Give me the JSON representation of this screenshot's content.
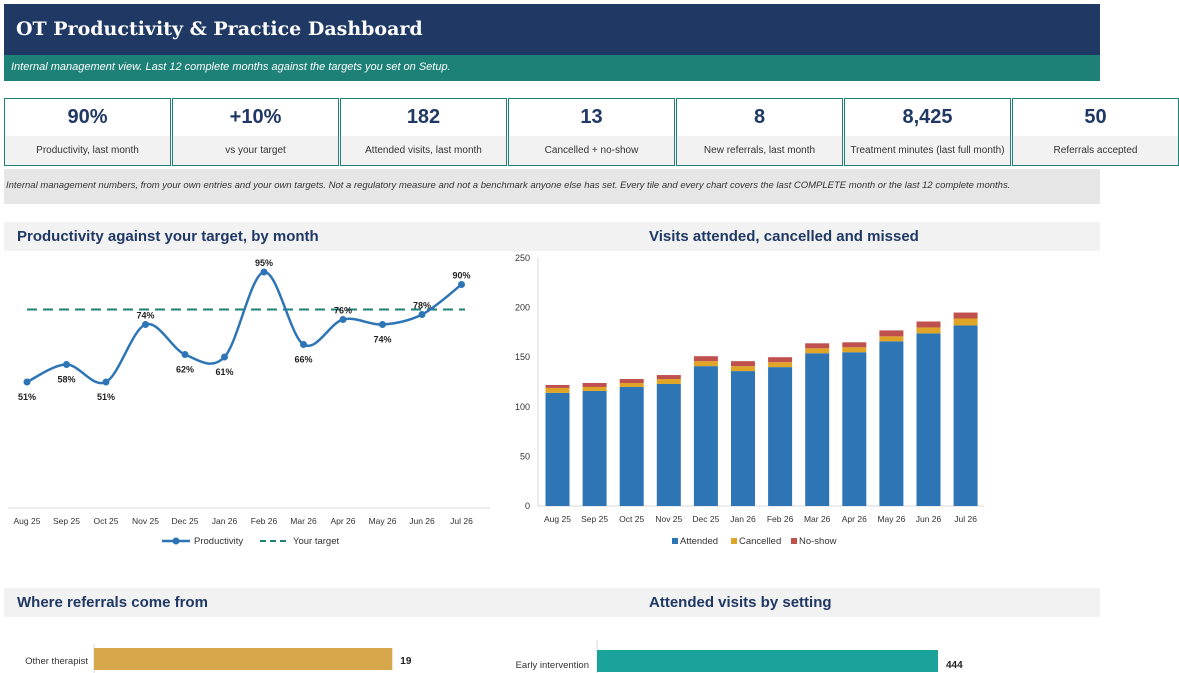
{
  "header": {
    "title": "OT Productivity & Practice Dashboard",
    "subtitle": "Internal management view. Last 12 complete months against the targets you set on Setup."
  },
  "kpis": [
    {
      "value": "90%",
      "label": "Productivity, last month"
    },
    {
      "value": "+10%",
      "label": "vs your target"
    },
    {
      "value": "182",
      "label": "Attended visits, last month"
    },
    {
      "value": "13",
      "label": "Cancelled + no-show"
    },
    {
      "value": "8",
      "label": "New referrals, last month"
    },
    {
      "value": "8,425",
      "label": "Treatment minutes (last full month)"
    },
    {
      "value": "50",
      "label": "Referrals accepted"
    }
  ],
  "disclaimer": "Internal management numbers, from your own entries and your own targets. Not a regulatory measure and not a benchmark anyone else has set. Every tile and every chart covers the last COMPLETE month or the last 12 complete months.",
  "sections": {
    "productivity": "Productivity against your target, by month",
    "visits": "Visits attended, cancelled and missed",
    "referrals": "Where referrals come from",
    "settings": "Attended visits by setting"
  },
  "colors": {
    "navy": "#1f3864",
    "teal": "#1d8177",
    "line": "#2e75b6",
    "attended": "#2e75b6",
    "cancelled": "#e0a526",
    "noshow": "#c0504d",
    "referral_bar": "#d6a84b",
    "setting_bar": "#1aa39a"
  },
  "chart_data": [
    {
      "type": "line",
      "categories": [
        "Aug 25",
        "Sep 25",
        "Oct 25",
        "Nov 25",
        "Dec 25",
        "Jan 26",
        "Feb 26",
        "Mar 26",
        "Apr 26",
        "May 26",
        "Jun 26",
        "Jul 26"
      ],
      "series": [
        {
          "name": "Productivity",
          "values": [
            51,
            58,
            51,
            74,
            62,
            61,
            95,
            66,
            76,
            74,
            78,
            90
          ]
        },
        {
          "name": "Your target",
          "values": [
            80,
            80,
            80,
            80,
            80,
            80,
            80,
            80,
            80,
            80,
            80,
            80
          ],
          "style": "dashed"
        }
      ],
      "data_labels": [
        "51%",
        "58%",
        "51%",
        "74%",
        "62%",
        "61%",
        "95%",
        "66%",
        "76%",
        "74%",
        "78%",
        "90%"
      ],
      "legend": "bottom"
    },
    {
      "type": "bar",
      "stacked": true,
      "categories": [
        "Aug 25",
        "Sep 25",
        "Oct 25",
        "Nov 25",
        "Dec 25",
        "Jan 26",
        "Feb 26",
        "Mar 26",
        "Apr 26",
        "May 26",
        "Jun 26",
        "Jul 26"
      ],
      "series": [
        {
          "name": "Attended",
          "values": [
            114,
            116,
            120,
            123,
            141,
            136,
            140,
            154,
            155,
            166,
            174,
            182
          ]
        },
        {
          "name": "Cancelled",
          "values": [
            5,
            4,
            4,
            5,
            5,
            5,
            5,
            5,
            5,
            5,
            6,
            7
          ]
        },
        {
          "name": "No-show",
          "values": [
            3,
            4,
            4,
            4,
            5,
            5,
            5,
            5,
            5,
            6,
            6,
            6
          ]
        }
      ],
      "yticks": [
        0,
        50,
        100,
        150,
        200,
        250
      ],
      "ylim": [
        0,
        250
      ],
      "legend": "bottom"
    },
    {
      "type": "bar",
      "orientation": "horizontal",
      "categories": [
        "Other therapist"
      ],
      "values": [
        19
      ]
    },
    {
      "type": "bar",
      "orientation": "horizontal",
      "categories": [
        "Early intervention"
      ],
      "values": [
        444
      ]
    }
  ]
}
